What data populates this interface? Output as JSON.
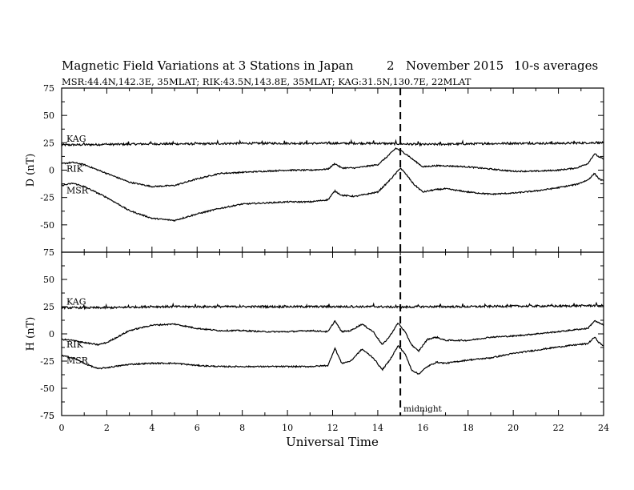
{
  "figure": {
    "title": "Magnetic Field Variations at 3 Stations in Japan",
    "day": "2",
    "month_year": "November 2015",
    "averaging": "10-s averages",
    "subtitle": "MSR:44.4N,142.3E, 35MLAT;   RIK:43.5N,143.8E, 35MLAT;   KAG:31.5N,130.7E, 22MLAT",
    "x_axis_label": "Universal Time",
    "midnight_label": "midnight",
    "midnight_ut": 15
  },
  "chart_data": [
    {
      "type": "line",
      "panel": "D",
      "ylabel": "D (nT)",
      "xlim": [
        0,
        24
      ],
      "ylim": [
        -75,
        75
      ],
      "x_ticks": [
        0,
        2,
        4,
        6,
        8,
        10,
        12,
        14,
        16,
        18,
        20,
        22,
        24
      ],
      "y_ticks": [
        -75,
        -50,
        -25,
        0,
        25,
        50,
        75
      ],
      "grid": false,
      "series": [
        {
          "name": "KAG",
          "x": [
            0,
            2,
            4,
            6,
            8,
            10,
            12,
            14,
            15,
            16,
            18,
            20,
            22,
            23.5,
            24
          ],
          "values": [
            23,
            23.5,
            24,
            24,
            24.5,
            24.5,
            24.5,
            24.5,
            24,
            23.5,
            24,
            24.5,
            24.5,
            25,
            25
          ]
        },
        {
          "name": "RIK",
          "x": [
            0,
            0.5,
            1,
            2,
            3,
            4,
            5,
            6,
            7,
            8,
            9,
            10,
            11,
            11.8,
            12.1,
            12.4,
            13,
            14,
            14.4,
            14.8,
            15,
            15.3,
            15.6,
            16,
            16.5,
            17,
            18,
            19,
            20,
            21,
            22,
            22.8,
            23.3,
            23.6,
            23.8,
            24
          ],
          "values": [
            6,
            7,
            5,
            -3,
            -11,
            -15,
            -14,
            -8,
            -3,
            -2,
            -1,
            0,
            0,
            1,
            6,
            2,
            2,
            5,
            12,
            20,
            18,
            14,
            9,
            3,
            4,
            4,
            3,
            1,
            -1,
            -1,
            0,
            2,
            6,
            15,
            12,
            10
          ]
        },
        {
          "name": "MSR",
          "x": [
            0,
            0.5,
            1,
            2,
            3,
            4,
            5,
            6,
            7,
            8,
            9,
            10,
            11,
            11.8,
            12.1,
            12.4,
            13,
            14,
            14.4,
            14.8,
            15,
            15.3,
            15.6,
            16,
            16.5,
            17,
            18,
            19,
            20,
            21,
            22,
            22.8,
            23.3,
            23.6,
            23.8,
            24
          ],
          "values": [
            -14,
            -12,
            -15,
            -25,
            -37,
            -44,
            -46,
            -40,
            -35,
            -31,
            -30,
            -29,
            -29,
            -27,
            -19,
            -23,
            -24,
            -20,
            -12,
            -3,
            2,
            -5,
            -13,
            -20,
            -18,
            -17,
            -20,
            -22,
            -21,
            -19,
            -16,
            -13,
            -9,
            -3,
            -8,
            -10
          ]
        }
      ]
    },
    {
      "type": "line",
      "panel": "H",
      "ylabel": "H (nT)",
      "xlim": [
        0,
        24
      ],
      "ylim": [
        -75,
        75
      ],
      "x_ticks": [
        0,
        2,
        4,
        6,
        8,
        10,
        12,
        14,
        16,
        18,
        20,
        22,
        24
      ],
      "y_ticks": [
        -75,
        -50,
        -25,
        0,
        25,
        50,
        75
      ],
      "grid": false,
      "series": [
        {
          "name": "KAG",
          "x": [
            0,
            2,
            4,
            6,
            8,
            10,
            12,
            14,
            15,
            16,
            18,
            20,
            22,
            23.5,
            24
          ],
          "values": [
            24,
            24,
            25,
            25,
            25,
            25,
            25,
            25,
            24.5,
            25,
            25,
            25.5,
            25.5,
            26,
            26
          ]
        },
        {
          "name": "RIK",
          "x": [
            0,
            0.5,
            1,
            1.6,
            2,
            3,
            4,
            5,
            6,
            7,
            8,
            9,
            10,
            11,
            11.8,
            12.1,
            12.4,
            12.8,
            13.3,
            13.8,
            14.2,
            14.5,
            14.9,
            15.2,
            15.5,
            15.8,
            16.2,
            16.6,
            17,
            18,
            19,
            20,
            21,
            22,
            22.8,
            23.3,
            23.6,
            23.8,
            24
          ],
          "values": [
            -5,
            -6,
            -8,
            -10,
            -8,
            3,
            8,
            9,
            5,
            3,
            3,
            2,
            2,
            3,
            2,
            12,
            2,
            3,
            9,
            2,
            -10,
            -3,
            10,
            2,
            -10,
            -16,
            -5,
            -3,
            -6,
            -6,
            -3,
            -2,
            0,
            2,
            4,
            5,
            12,
            10,
            8
          ]
        },
        {
          "name": "MSR",
          "x": [
            0,
            0.5,
            1,
            1.6,
            2,
            3,
            4,
            5,
            6,
            7,
            8,
            9,
            10,
            11,
            11.8,
            12.1,
            12.4,
            12.8,
            13.3,
            13.8,
            14.2,
            14.5,
            14.9,
            15.2,
            15.5,
            15.8,
            16.2,
            16.6,
            17,
            18,
            19,
            20,
            21,
            22,
            22.8,
            23.3,
            23.6,
            23.8,
            24
          ],
          "values": [
            -20,
            -22,
            -27,
            -32,
            -31,
            -28,
            -27,
            -27,
            -29,
            -30,
            -30,
            -30,
            -30,
            -30,
            -29,
            -13,
            -27,
            -25,
            -14,
            -22,
            -33,
            -25,
            -11,
            -18,
            -33,
            -37,
            -30,
            -26,
            -27,
            -24,
            -22,
            -18,
            -15,
            -12,
            -10,
            -9,
            -3,
            -8,
            -11
          ]
        }
      ]
    }
  ]
}
